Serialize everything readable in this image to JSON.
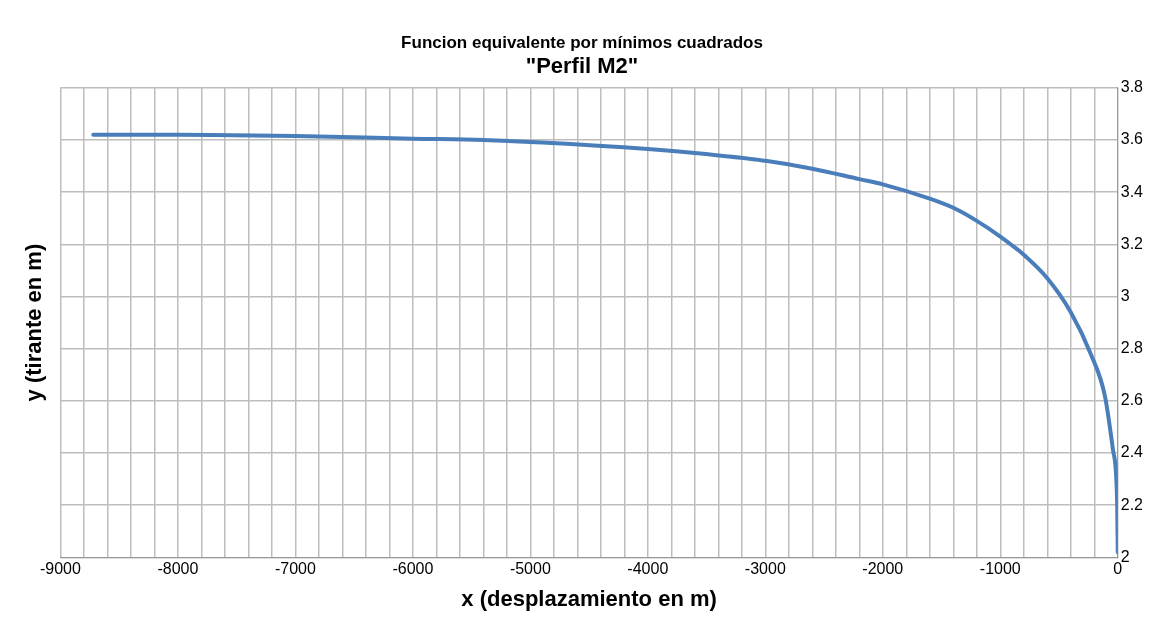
{
  "chart_data": {
    "type": "line",
    "title": "Funcion equivalente por mínimos cuadrados",
    "subtitle": "\"Perfil M2\"",
    "xlabel": "x (desplazamiento en m)",
    "ylabel": "y (tirante en m)",
    "series": [
      {
        "color": "#4a7ebb",
        "x": [
          -8720,
          -8000,
          -7000,
          -6000,
          -5400,
          -4900,
          -4000,
          -3600,
          -3000,
          -2600,
          -2200,
          -2000,
          -1600,
          -1400,
          -1200,
          -1000,
          -800,
          -600,
          -400,
          -230,
          -110,
          -40,
          -5,
          0
        ],
        "values": [
          3.62,
          3.62,
          3.615,
          3.605,
          3.6,
          3.59,
          3.565,
          3.55,
          3.52,
          3.49,
          3.45,
          3.43,
          3.375,
          3.34,
          3.29,
          3.23,
          3.16,
          3.07,
          2.94,
          2.78,
          2.62,
          2.41,
          2.21,
          2.02
        ]
      }
    ],
    "xlim": [
      -9000,
      0
    ],
    "xticks": [
      -9000,
      {
        "value": -8800,
        "label": null
      },
      {
        "value": -8600,
        "label": null
      },
      {
        "value": -8400,
        "label": null
      },
      {
        "value": -8200,
        "label": null
      },
      -8000,
      {
        "value": -7800,
        "label": null
      },
      {
        "value": -7600,
        "label": null
      },
      {
        "value": -7400,
        "label": null
      },
      {
        "value": -7200,
        "label": null
      },
      -7000,
      {
        "value": -6800,
        "label": null
      },
      {
        "value": -6600,
        "label": null
      },
      {
        "value": -6400,
        "label": null
      },
      {
        "value": -6200,
        "label": null
      },
      -6000,
      {
        "value": -5800,
        "label": null
      },
      {
        "value": -5600,
        "label": null
      },
      {
        "value": -5400,
        "label": null
      },
      {
        "value": -5200,
        "label": null
      },
      -5000,
      {
        "value": -4800,
        "label": null
      },
      {
        "value": -4600,
        "label": null
      },
      {
        "value": -4400,
        "label": null
      },
      {
        "value": -4200,
        "label": null
      },
      -4000,
      {
        "value": -3800,
        "label": null
      },
      {
        "value": -3600,
        "label": null
      },
      {
        "value": -3400,
        "label": null
      },
      {
        "value": -3200,
        "label": null
      },
      -3000,
      {
        "value": -2800,
        "label": null
      },
      {
        "value": -2600,
        "label": null
      },
      {
        "value": -2400,
        "label": null
      },
      {
        "value": -2200,
        "label": null
      },
      -2000,
      {
        "value": -1800,
        "label": null
      },
      {
        "value": -1600,
        "label": null
      },
      {
        "value": -1400,
        "label": null
      },
      {
        "value": -1200,
        "label": null
      },
      -1000,
      {
        "value": -800,
        "label": null
      },
      {
        "value": -600,
        "label": null
      },
      {
        "value": -400,
        "label": null
      },
      {
        "value": -200,
        "label": null
      },
      0
    ],
    "ylim": [
      2,
      3.8
    ],
    "yticks": [
      2,
      2.2,
      2.4,
      2.6,
      2.8,
      3,
      3.2,
      3.4,
      3.6,
      3.8
    ],
    "grid": true,
    "legend": false,
    "marker": "none",
    "line_style": "solid"
  }
}
